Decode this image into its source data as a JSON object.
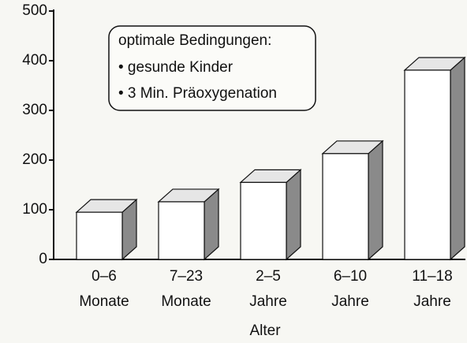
{
  "chart_data": {
    "type": "bar3d",
    "categories": [
      [
        "0–6",
        "Monate"
      ],
      [
        "7–23",
        "Monate"
      ],
      [
        "2–5",
        "Jahre"
      ],
      [
        "6–10",
        "Jahre"
      ],
      [
        "11–18",
        "Jahre"
      ]
    ],
    "values": [
      95,
      116,
      155,
      213,
      381
    ],
    "x_label": "Alter",
    "annotation": [
      "optimale Bedingungen:",
      "• gesunde Kinder",
      "• 3 Min. Präoxygenation"
    ],
    "ylim": [
      0,
      500
    ],
    "yticks": [
      0,
      100,
      200,
      300,
      400,
      500
    ],
    "color": "#ffffff",
    "side_color": "#8a8a8a",
    "top_color": "#e6e6e6"
  }
}
